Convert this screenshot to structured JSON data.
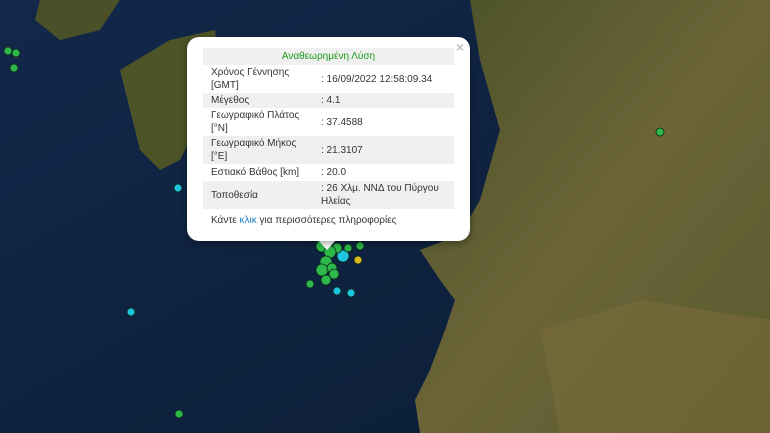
{
  "popup": {
    "title": "Αναθεωρημένη Λύση",
    "close_icon": "×",
    "rows": [
      {
        "label": "Χρόνος Γέννησης [GMT]",
        "value": ": 16/09/2022 12:58:09.34"
      },
      {
        "label": "Μέγεθος",
        "value": ": 4.1"
      },
      {
        "label": "Γεωγραφικό Πλάτος [°N]",
        "value": ": 37.4588"
      },
      {
        "label": "Γεωγραφικό Μήκος [°E]",
        "value": ": 21.3107"
      },
      {
        "label": "Εστιακό Βάθος [km]",
        "value": ": 20.0"
      },
      {
        "label": "Τοποθεσία",
        "value": ": 26 Χλμ. ΝΝΔ του Πύργου Ηλείας"
      }
    ],
    "more_prefix": "Κάντε ",
    "more_link": "κλικ",
    "more_suffix": " για περισσότερες πληροφορίες"
  },
  "marker_colors": {
    "green": "#2eb84a",
    "cyan": "#1ec3dc",
    "yellow": "#e0b820"
  }
}
